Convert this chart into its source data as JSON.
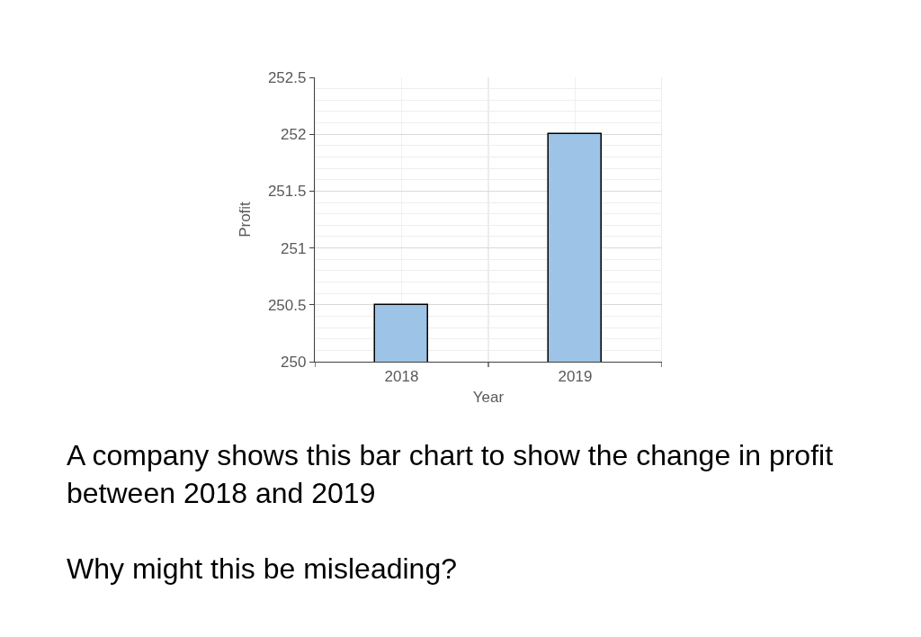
{
  "chart_data": {
    "type": "bar",
    "xlabel": "Year",
    "ylabel": "Profit",
    "categories": [
      "2018",
      "2019"
    ],
    "values": [
      250.5,
      252
    ],
    "color": "#9dc3e6",
    "ylim": [
      250,
      252.5
    ],
    "yticks": [
      250,
      {
        "value": 250.1,
        "label": null
      },
      {
        "value": 250.2,
        "label": null
      },
      {
        "value": 250.3,
        "label": null
      },
      {
        "value": 250.4,
        "label": null
      },
      250.5,
      {
        "value": 250.6,
        "label": null
      },
      {
        "value": 250.7,
        "label": null
      },
      {
        "value": 250.8,
        "label": null
      },
      {
        "value": 250.9,
        "label": null
      },
      251,
      {
        "value": 251.1,
        "label": null
      },
      {
        "value": 251.2,
        "label": null
      },
      {
        "value": 251.3,
        "label": null
      },
      {
        "value": 251.4,
        "label": null
      },
      251.5,
      {
        "value": 251.6,
        "label": null
      },
      {
        "value": 251.7,
        "label": null
      },
      {
        "value": 251.8,
        "label": null
      },
      {
        "value": 251.9,
        "label": null
      },
      252,
      {
        "value": 252.1,
        "label": null
      },
      {
        "value": 252.2,
        "label": null
      },
      {
        "value": 252.3,
        "label": null
      },
      {
        "value": 252.4,
        "label": null
      },
      252.5
    ],
    "grid": true,
    "annotations": [
      "A company shows this bar chart to show the change in profit between 2018 and 2019",
      "Why might this be misleading?"
    ]
  }
}
